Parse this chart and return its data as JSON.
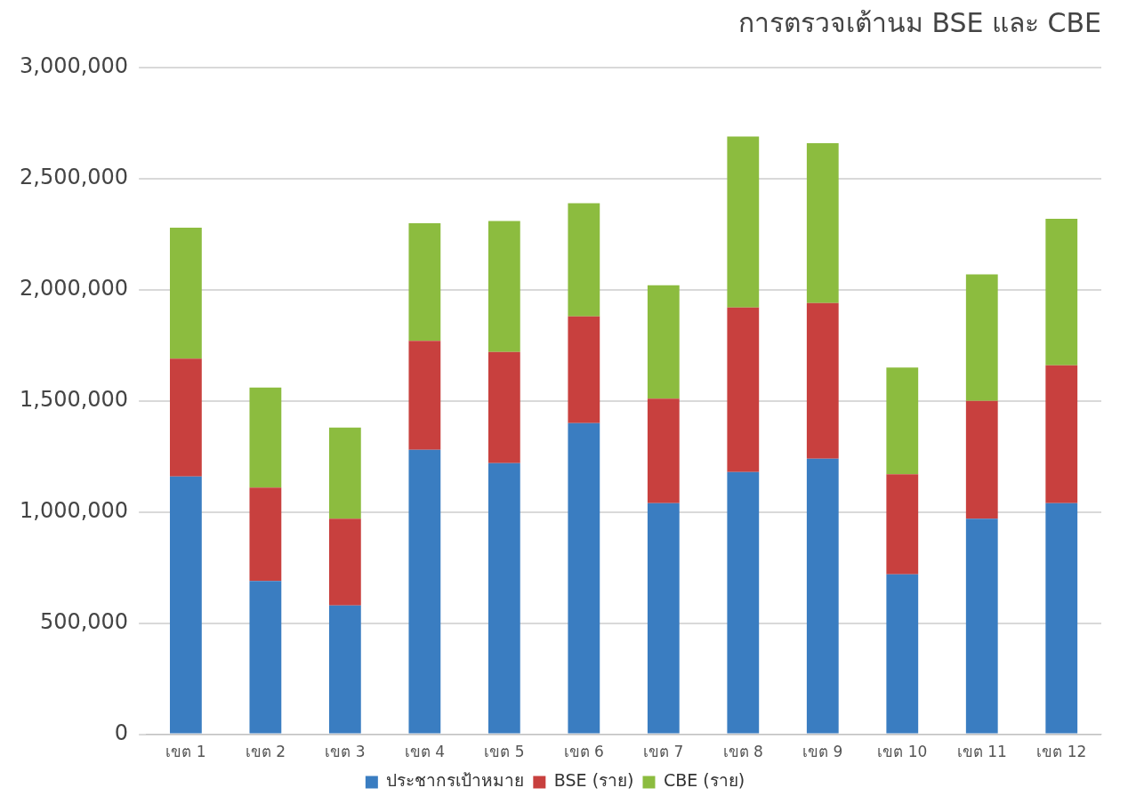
{
  "chart_data": {
    "type": "bar",
    "stacked": true,
    "title": "การตรวจเต้านม BSE และ CBE",
    "categories": [
      "เขต 1",
      "เขต 2",
      "เขต 3",
      "เขต 4",
      "เขต 5",
      "เขต 6",
      "เขต 7",
      "เขต 8",
      "เขต 9",
      "เขต 10",
      "เขต 11",
      "เขต 12"
    ],
    "series": [
      {
        "name": "ประชากรเป้าหมาย",
        "color": "#3a7dc1",
        "values": [
          1160000,
          690000,
          580000,
          1280000,
          1220000,
          1400000,
          1040000,
          1180000,
          1240000,
          720000,
          970000,
          1040000
        ]
      },
      {
        "name": "BSE (ราย)",
        "color": "#c8403e",
        "values": [
          530000,
          420000,
          390000,
          490000,
          500000,
          480000,
          470000,
          740000,
          700000,
          450000,
          530000,
          620000
        ]
      },
      {
        "name": "CBE (ราย)",
        "color": "#8cbc3f",
        "values": [
          590000,
          450000,
          410000,
          530000,
          590000,
          510000,
          510000,
          770000,
          720000,
          480000,
          570000,
          660000
        ]
      }
    ],
    "ylim": [
      0,
      3000000
    ],
    "yticks": [
      0,
      {
        "value": 500000,
        "label": "500,000"
      },
      {
        "value": 1000000,
        "label": "1,000,000"
      },
      {
        "value": 1500000,
        "label": "1,500,000"
      },
      {
        "value": 2000000,
        "label": "2,000,000"
      },
      {
        "value": 2500000,
        "label": "2,500,000"
      },
      {
        "value": 3000000,
        "label": "3,000,000"
      }
    ],
    "grid": "y",
    "legend": "bottom"
  }
}
